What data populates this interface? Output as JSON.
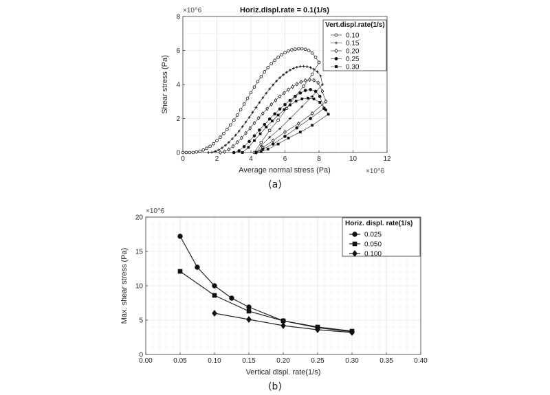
{
  "chart_data": [
    {
      "type": "scatter",
      "title": "Horiz.displ.rate = 0.1(1/s)",
      "xlabel": "Average normal stress (Pa)",
      "ylabel": "Shear stress (Pa)",
      "x_multiplier": "×10^6",
      "y_multiplier": "×10^6",
      "xlim": [
        0,
        12
      ],
      "ylim": [
        0,
        8
      ],
      "xticks": [
        "0",
        "2",
        "4",
        "6",
        "8",
        "10",
        "12"
      ],
      "yticks": [
        "0",
        "2",
        "4",
        "6",
        "8"
      ],
      "grid": true,
      "legend_title": "Vert.displ.rate(1/s)",
      "legend_position": "top-right",
      "caption": "(a)",
      "series": [
        {
          "name": "0.10",
          "marker": "circle-open",
          "x": [
            0,
            0.2,
            0.4,
            0.6,
            0.8,
            1.0,
            1.2,
            1.4,
            1.6,
            1.8,
            2.0,
            2.2,
            2.4,
            2.6,
            2.8,
            3.0,
            3.2,
            3.4,
            3.6,
            3.8,
            4.0,
            4.2,
            4.4,
            4.6,
            4.8,
            5.0,
            5.2,
            5.4,
            5.6,
            5.8,
            6.0,
            6.2,
            6.4,
            6.6,
            6.8,
            7.0,
            7.2,
            7.4,
            7.6,
            7.8,
            8.0,
            8.0,
            7.6,
            7.1,
            6.6,
            6.1,
            5.6,
            5.1,
            4.6,
            4.2
          ],
          "y": [
            0,
            0,
            0,
            0,
            0.03,
            0.08,
            0.15,
            0.25,
            0.37,
            0.52,
            0.7,
            0.9,
            1.12,
            1.36,
            1.62,
            1.9,
            2.2,
            2.52,
            2.85,
            3.18,
            3.52,
            3.85,
            4.17,
            4.47,
            4.75,
            5.0,
            5.22,
            5.42,
            5.6,
            5.75,
            5.87,
            5.97,
            6.04,
            6.08,
            6.1,
            6.1,
            6.07,
            6.0,
            5.85,
            5.6,
            5.3,
            5.3,
            4.6,
            3.9,
            3.3,
            2.6,
            1.9,
            1.3,
            0.6,
            0
          ]
        },
        {
          "name": "0.15",
          "marker": "plus",
          "x": [
            1.5,
            1.7,
            1.9,
            2.1,
            2.3,
            2.5,
            2.7,
            2.9,
            3.1,
            3.3,
            3.5,
            3.7,
            3.9,
            4.1,
            4.3,
            4.5,
            4.7,
            4.9,
            5.1,
            5.3,
            5.5,
            5.7,
            5.9,
            6.1,
            6.3,
            6.5,
            6.7,
            6.9,
            7.1,
            7.3,
            7.5,
            7.7,
            7.9,
            8.1,
            8.2,
            8.2,
            7.6,
            7.0,
            6.3,
            5.7,
            5.1,
            4.6,
            4.3
          ],
          "y": [
            0,
            0.02,
            0.07,
            0.15,
            0.27,
            0.42,
            0.6,
            0.8,
            1.02,
            1.26,
            1.52,
            1.79,
            2.07,
            2.36,
            2.65,
            2.94,
            3.22,
            3.49,
            3.74,
            3.98,
            4.2,
            4.4,
            4.57,
            4.72,
            4.85,
            4.95,
            5.02,
            5.06,
            5.07,
            5.05,
            5.0,
            4.9,
            4.75,
            4.5,
            4.0,
            4.0,
            3.3,
            2.7,
            2.0,
            1.4,
            0.9,
            0.4,
            0
          ]
        },
        {
          "name": "0.20",
          "marker": "diamond-open",
          "x": [
            2.2,
            2.45,
            2.7,
            2.95,
            3.2,
            3.45,
            3.7,
            3.95,
            4.2,
            4.45,
            4.7,
            4.95,
            5.2,
            5.45,
            5.7,
            5.95,
            6.2,
            6.45,
            6.7,
            6.95,
            7.2,
            7.45,
            7.7,
            7.95,
            8.2,
            8.4,
            8.4,
            7.6,
            6.8,
            6.0,
            5.3,
            4.7,
            4.3
          ],
          "y": [
            0,
            0.05,
            0.18,
            0.37,
            0.6,
            0.86,
            1.14,
            1.43,
            1.73,
            2.02,
            2.3,
            2.57,
            2.83,
            3.07,
            3.3,
            3.5,
            3.7,
            3.87,
            4.02,
            4.15,
            4.24,
            4.28,
            4.25,
            4.1,
            3.6,
            3.0,
            3.0,
            2.3,
            1.7,
            1.2,
            0.7,
            0.3,
            0
          ]
        },
        {
          "name": "0.25",
          "marker": "circle-filled",
          "x": [
            3.0,
            3.3,
            3.6,
            3.9,
            4.2,
            4.5,
            4.8,
            5.1,
            5.4,
            5.7,
            6.0,
            6.3,
            6.6,
            6.9,
            7.2,
            7.5,
            7.8,
            8.05,
            8.3,
            8.3,
            7.5,
            6.7,
            6.0,
            5.3,
            4.7,
            4.3
          ],
          "y": [
            0,
            0.1,
            0.35,
            0.65,
            0.98,
            1.32,
            1.65,
            1.97,
            2.27,
            2.56,
            2.82,
            3.07,
            3.3,
            3.5,
            3.65,
            3.7,
            3.6,
            3.3,
            2.6,
            2.6,
            2.0,
            1.45,
            0.95,
            0.5,
            0.2,
            0
          ]
        },
        {
          "name": "0.30",
          "marker": "square-filled",
          "x": [
            3.5,
            3.85,
            4.2,
            4.55,
            4.9,
            5.25,
            5.6,
            5.95,
            6.3,
            6.65,
            7.0,
            7.35,
            7.7,
            8.05,
            8.4,
            8.55,
            7.6,
            6.9,
            6.2,
            5.6,
            5.0,
            4.6,
            4.3
          ],
          "y": [
            0,
            0.3,
            0.7,
            1.1,
            1.5,
            1.85,
            2.2,
            2.52,
            2.8,
            3.02,
            3.15,
            3.2,
            3.15,
            2.95,
            2.5,
            2.25,
            1.6,
            1.2,
            0.85,
            0.5,
            0.2,
            0.05,
            0
          ]
        }
      ]
    },
    {
      "type": "line",
      "title": "",
      "xlabel": "Vertical displ. rate(1/s)",
      "ylabel": "Max. shear stress (Pa)",
      "y_multiplier": "×10^6",
      "xlim": [
        0,
        0.4
      ],
      "ylim": [
        0,
        20
      ],
      "xticks": [
        "0.00",
        "0.05",
        "0.10",
        "0.15",
        "0.20",
        "0.25",
        "0.30",
        "0.35",
        "0.40"
      ],
      "yticks": [
        "0",
        "5",
        "10",
        "15",
        "20"
      ],
      "grid": true,
      "legend_title": "Horiz. displ. rate(1/s)",
      "legend_position": "top-right",
      "caption": "(b)",
      "series": [
        {
          "name": "0.025",
          "marker": "circle-filled",
          "x": [
            0.05,
            0.075,
            0.1,
            0.125,
            0.15,
            0.2,
            0.25,
            0.3
          ],
          "y": [
            17.2,
            12.7,
            10.0,
            8.2,
            6.9,
            4.9,
            3.9,
            3.3
          ]
        },
        {
          "name": "0.050",
          "marker": "square-filled",
          "x": [
            0.05,
            0.1,
            0.15,
            0.2,
            0.25,
            0.3
          ],
          "y": [
            12.1,
            8.6,
            6.3,
            4.9,
            4.0,
            3.4
          ]
        },
        {
          "name": "0.100",
          "marker": "diamond-filled",
          "x": [
            0.1,
            0.15,
            0.2,
            0.25,
            0.3
          ],
          "y": [
            6.0,
            5.1,
            4.2,
            3.6,
            3.2
          ]
        }
      ]
    }
  ]
}
